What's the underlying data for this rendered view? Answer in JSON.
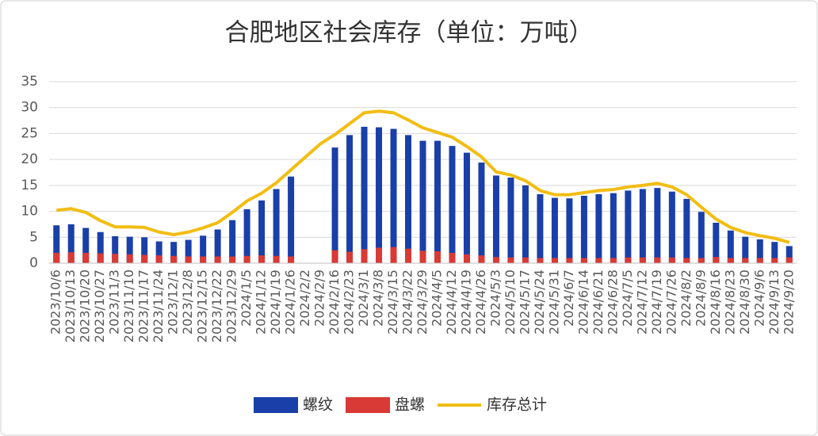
{
  "chart_data": {
    "type": "bar",
    "title": "合肥地区社会库存（单位：万吨）",
    "categories": [
      "2023/10/6",
      "2023/10/13",
      "2023/10/20",
      "2023/10/27",
      "2023/11/3",
      "2023/11/10",
      "2023/11/17",
      "2023/11/24",
      "2023/12/1",
      "2023/12/8",
      "2023/12/15",
      "2023/12/22",
      "2023/12/29",
      "2024/1/5",
      "2024/1/12",
      "2024/1/19",
      "2024/1/26",
      "2024/2/2",
      "2024/2/9",
      "2024/2/16",
      "2024/2/23",
      "2024/3/1",
      "2024/3/8",
      "2024/3/15",
      "2024/3/22",
      "2024/3/29",
      "2024/4/5",
      "2024/4/12",
      "2024/4/19",
      "2024/4/26",
      "2024/5/3",
      "2024/5/10",
      "2024/5/17",
      "2024/5/24",
      "2024/5/31",
      "2024/6/7",
      "2024/6/14",
      "2024/6/21",
      "2024/6/28",
      "2024/7/5",
      "2024/7/12",
      "2024/7/19",
      "2024/7/26",
      "2024/8/2",
      "2024/8/9",
      "2024/8/16",
      "2024/8/23",
      "2024/8/30",
      "2024/9/6",
      "2024/9/13",
      "2024/9/20"
    ],
    "series": [
      {
        "name": "螺纹",
        "color": "#1a3fa8",
        "type": "bar",
        "values": [
          7.3,
          7.5,
          6.8,
          6.0,
          5.2,
          5.1,
          5.0,
          4.2,
          4.1,
          4.5,
          5.3,
          6.5,
          8.3,
          10.4,
          12.1,
          14.3,
          16.7,
          null,
          null,
          22.3,
          24.7,
          26.3,
          26.2,
          25.9,
          24.7,
          23.6,
          23.6,
          22.6,
          21.3,
          19.4,
          16.9,
          16.5,
          15.0,
          13.3,
          12.6,
          12.5,
          13.0,
          13.3,
          13.5,
          14.0,
          14.3,
          14.5,
          13.8,
          12.4,
          9.9,
          7.8,
          6.3,
          5.1,
          4.6,
          4.1,
          3.3
        ]
      },
      {
        "name": "盘螺",
        "color": "#d93a35",
        "type": "bar",
        "values": [
          2.0,
          2.1,
          2.0,
          1.9,
          1.8,
          1.7,
          1.6,
          1.5,
          1.4,
          1.3,
          1.3,
          1.3,
          1.3,
          1.4,
          1.5,
          1.4,
          1.3,
          null,
          null,
          2.5,
          2.2,
          2.7,
          3.0,
          3.1,
          2.8,
          2.4,
          2.3,
          2.0,
          1.7,
          1.5,
          1.2,
          1.1,
          1.1,
          1.0,
          1.0,
          1.0,
          1.0,
          1.0,
          1.0,
          1.1,
          1.1,
          1.1,
          1.1,
          1.0,
          1.0,
          1.2,
          1.0,
          1.0,
          1.0,
          1.0,
          1.1
        ]
      },
      {
        "name": "库存总计",
        "color": "#f2bd13",
        "type": "line",
        "values": [
          10.2,
          10.5,
          9.8,
          8.2,
          7.0,
          7.0,
          6.9,
          6.0,
          5.5,
          6.0,
          6.8,
          7.8,
          9.8,
          12.0,
          13.5,
          15.5,
          18.0,
          20.5,
          23.0,
          24.8,
          26.9,
          29.0,
          29.3,
          29.0,
          27.6,
          26.1,
          25.2,
          24.3,
          22.5,
          20.5,
          17.6,
          17.0,
          15.9,
          14.0,
          13.2,
          13.2,
          13.6,
          14.0,
          14.2,
          14.7,
          15.0,
          15.4,
          14.7,
          13.2,
          10.8,
          8.5,
          6.9,
          5.9,
          5.3,
          4.8,
          4.0
        ]
      }
    ],
    "ylim": [
      0,
      35
    ],
    "yticks": [
      0,
      5,
      10,
      15,
      20,
      25,
      30,
      35
    ],
    "grid": true,
    "legend": "bottom"
  }
}
